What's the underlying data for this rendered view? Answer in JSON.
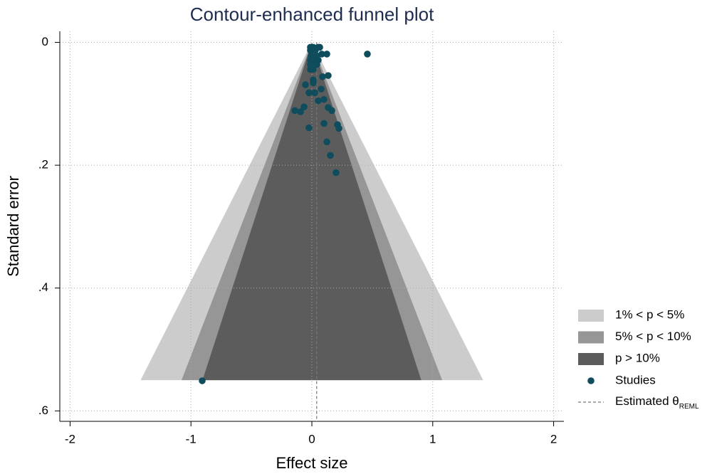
{
  "chart_data": {
    "type": "funnel",
    "title": "Contour-enhanced funnel plot",
    "x_label": "Effect size",
    "y_label": "Standard error",
    "xlim": [
      -2.085,
      2.085
    ],
    "ylim": [
      -0.018,
      0.617
    ],
    "y_reversed": true,
    "xticks": [
      -2,
      -1,
      0,
      1,
      2
    ],
    "yticks": [
      0,
      {
        "value": 0.2,
        "label": ".2"
      },
      {
        "value": 0.4,
        "label": ".4"
      },
      {
        "value": 0.6,
        "label": ".6"
      }
    ],
    "grid": true,
    "se_max": 0.55,
    "contours": [
      {
        "name": "1% < p < 5%",
        "z": 2.576,
        "color": "#cccccc"
      },
      {
        "name": "5% < p < 10%",
        "z": 1.96,
        "color": "#969696"
      },
      {
        "name": "p > 10%",
        "z": 1.645,
        "color": "#5c5c5c"
      }
    ],
    "series": [
      {
        "name": "Studies",
        "color": "#0f4c5c",
        "x": [
          -0.012,
          0.012,
          0.053,
          0.065,
          -0.012,
          0.029,
          0.082,
          0.124,
          0.459,
          -0.006,
          0.041,
          -0.012,
          0.012,
          0.053,
          -0.012,
          0.041,
          -0.012,
          0.012,
          0.135,
          0.012,
          0.088,
          -0.053,
          0.012,
          0.077,
          -0.024,
          0.024,
          0.1,
          0.053,
          -0.065,
          0.135,
          0.165,
          -0.094,
          -0.141,
          0.1,
          0.212,
          0.224,
          -0.024,
          0.124,
          0.153,
          0.2,
          -0.907
        ],
        "values": [
          0.008,
          0.008,
          0.008,
          0.008,
          0.013,
          0.013,
          0.019,
          0.019,
          0.019,
          0.022,
          0.022,
          0.029,
          0.029,
          0.029,
          0.036,
          0.036,
          0.044,
          0.044,
          0.054,
          0.061,
          0.056,
          0.069,
          0.066,
          0.076,
          0.082,
          0.082,
          0.093,
          0.095,
          0.105,
          0.106,
          0.111,
          0.113,
          0.111,
          0.132,
          0.134,
          0.14,
          0.139,
          0.162,
          0.184,
          0.212,
          0.551
        ]
      }
    ],
    "theta": {
      "name": "Estimated θ",
      "subscript": "REML",
      "value": 0.04,
      "color": "#777777"
    }
  }
}
